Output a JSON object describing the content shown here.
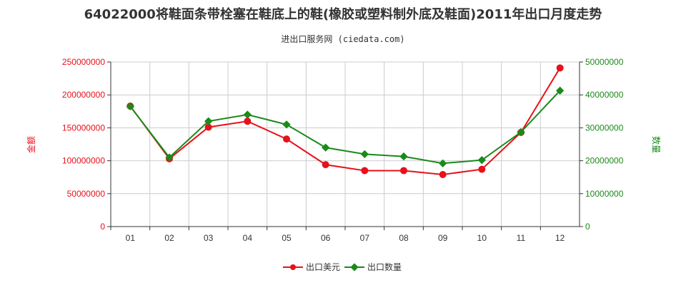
{
  "title": "64022000将鞋面条带栓塞在鞋底上的鞋(橡胶或塑料制外底及鞋面)2011年出口月度走势",
  "subtitle": "进出口服务网 (ciedata.com)",
  "colors": {
    "amount": "#e8101a",
    "quantity": "#1a8a1a",
    "grid": "#cccccc",
    "axis": "#333333"
  },
  "chart_data": {
    "type": "line",
    "categories": [
      "01",
      "02",
      "03",
      "04",
      "05",
      "06",
      "07",
      "08",
      "09",
      "10",
      "11",
      "12"
    ],
    "series": [
      {
        "name": "出口美元",
        "axis": "left",
        "color": "#e8101a",
        "values": [
          183000000,
          103000000,
          151000000,
          160000000,
          133000000,
          94000000,
          85000000,
          85000000,
          79000000,
          87000000,
          143000000,
          241000000
        ]
      },
      {
        "name": "出口数量",
        "axis": "right",
        "color": "#1a8a1a",
        "values": [
          36500000,
          21000000,
          32000000,
          34000000,
          31000000,
          24000000,
          22000000,
          21300000,
          19200000,
          20200000,
          28700000,
          41300000
        ]
      }
    ],
    "ylabel_left": "金额",
    "ylabel_right": "数量",
    "ylim_left": [
      0,
      250000000
    ],
    "ylim_right": [
      0,
      50000000
    ],
    "yticks_left": [
      "0",
      "50000000",
      "100000000",
      "150000000",
      "200000000",
      "250000000"
    ],
    "yticks_right": [
      "0",
      "10000000",
      "20000000",
      "30000000",
      "40000000",
      "50000000"
    ],
    "grid": true,
    "legend_position": "bottom-center"
  }
}
